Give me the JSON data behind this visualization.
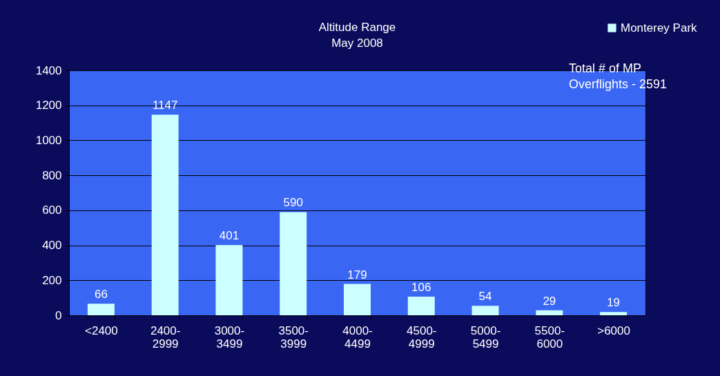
{
  "chart_data": {
    "type": "bar",
    "title": "Altitude Range",
    "subtitle": "May 2008",
    "categories": [
      "<2400",
      "2400-2999",
      "3000-3499",
      "3500-3999",
      "4000-4499",
      "4500-4999",
      "5000-5499",
      "5500-6000",
      ">6000"
    ],
    "series": [
      {
        "name": "Monterey Park",
        "color": "#ccffff",
        "values": [
          66,
          1147,
          401,
          590,
          179,
          106,
          54,
          29,
          19
        ]
      }
    ],
    "ylim": [
      0,
      1400
    ],
    "yticks": [
      0,
      200,
      400,
      600,
      800,
      1000,
      1200,
      1400
    ],
    "grid": "y",
    "legend": "top right",
    "data_labels": true,
    "annotations": [
      "Total # of MP Overflights - 2591"
    ]
  }
}
